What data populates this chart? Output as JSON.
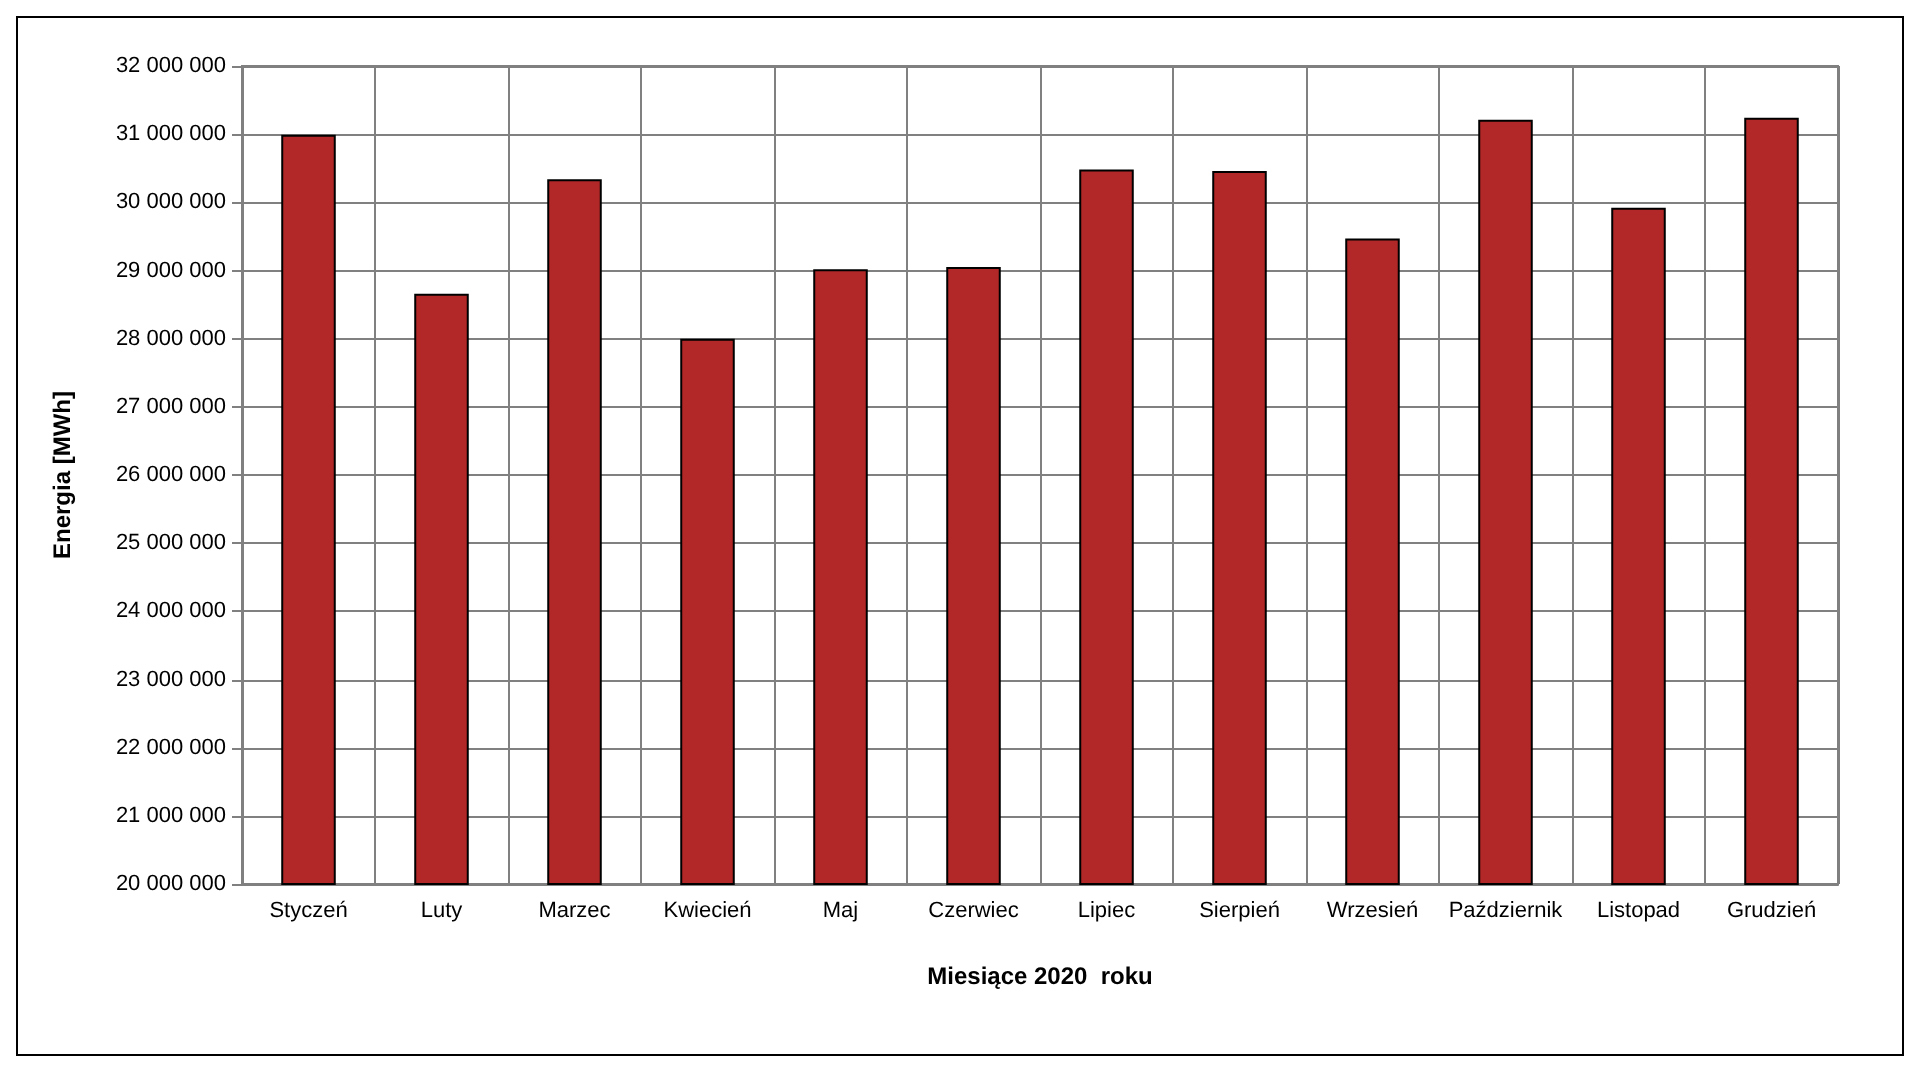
{
  "chart_data": {
    "type": "bar",
    "xlabel": "Miesiące 2020  roku",
    "ylabel": "Energia [MWh]",
    "categories": [
      "Styczeń",
      "Luty",
      "Marzec",
      "Kwiecień",
      "Maj",
      "Czerwiec",
      "Lipiec",
      "Sierpień",
      "Wrzesień",
      "Październik",
      "Listopad",
      "Grudzień"
    ],
    "values": [
      30990000,
      28660000,
      30340000,
      28000000,
      29020000,
      29050000,
      30480000,
      30460000,
      29470000,
      31210000,
      29920000,
      31240000
    ],
    "color": "#b22828",
    "ylim": [
      20000000,
      32000000
    ],
    "yticks": [
      {
        "value": 20000000,
        "label": "20 000 000"
      },
      {
        "value": 21000000,
        "label": "21 000 000"
      },
      {
        "value": 22000000,
        "label": "22 000 000"
      },
      {
        "value": 23000000,
        "label": "23 000 000"
      },
      {
        "value": 24000000,
        "label": "24 000 000"
      },
      {
        "value": 25000000,
        "label": "25 000 000"
      },
      {
        "value": 26000000,
        "label": "26 000 000"
      },
      {
        "value": 27000000,
        "label": "27 000 000"
      },
      {
        "value": 28000000,
        "label": "28 000 000"
      },
      {
        "value": 29000000,
        "label": "29 000 000"
      },
      {
        "value": 30000000,
        "label": "30 000 000"
      },
      {
        "value": 31000000,
        "label": "31 000 000"
      },
      {
        "value": 32000000,
        "label": "32 000 000"
      }
    ],
    "grid": true
  }
}
